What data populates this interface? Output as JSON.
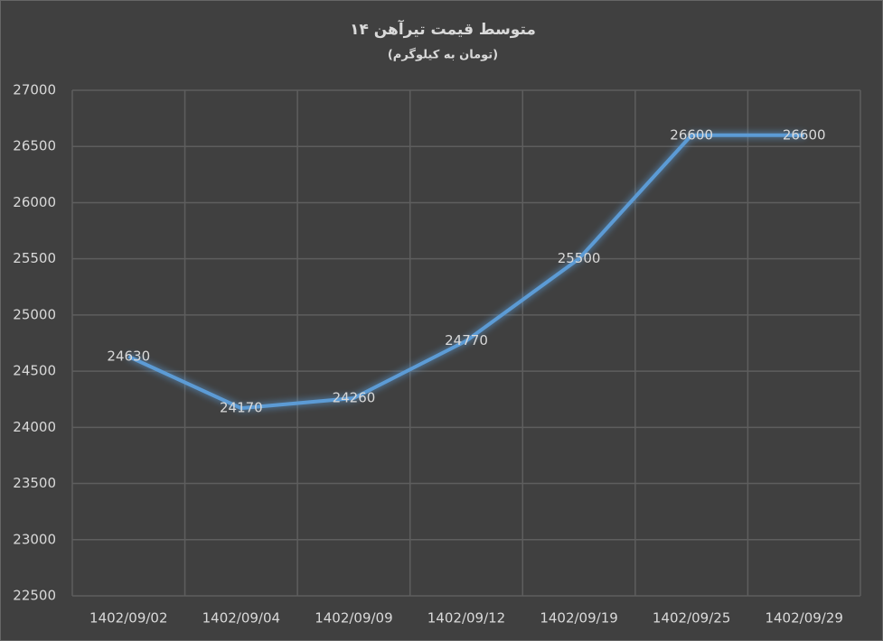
{
  "chart_data": {
    "type": "line",
    "title": "متوسط قیمت تیرآهن ۱۴",
    "subtitle": "(تومان به کیلوگرم)",
    "categories": [
      "1402/09/02",
      "1402/09/04",
      "1402/09/09",
      "1402/09/12",
      "1402/09/19",
      "1402/09/25",
      "1402/09/29"
    ],
    "series": [
      {
        "color": "#5b9bd5",
        "values": [
          24630,
          24170,
          24260,
          24770,
          25500,
          26600,
          26600
        ]
      }
    ],
    "ylim": [
      22500,
      27000
    ],
    "yticks": [
      22500,
      23000,
      23500,
      24000,
      24500,
      25000,
      25500,
      26000,
      26500,
      27000
    ],
    "grid": true,
    "data_labels": true
  }
}
